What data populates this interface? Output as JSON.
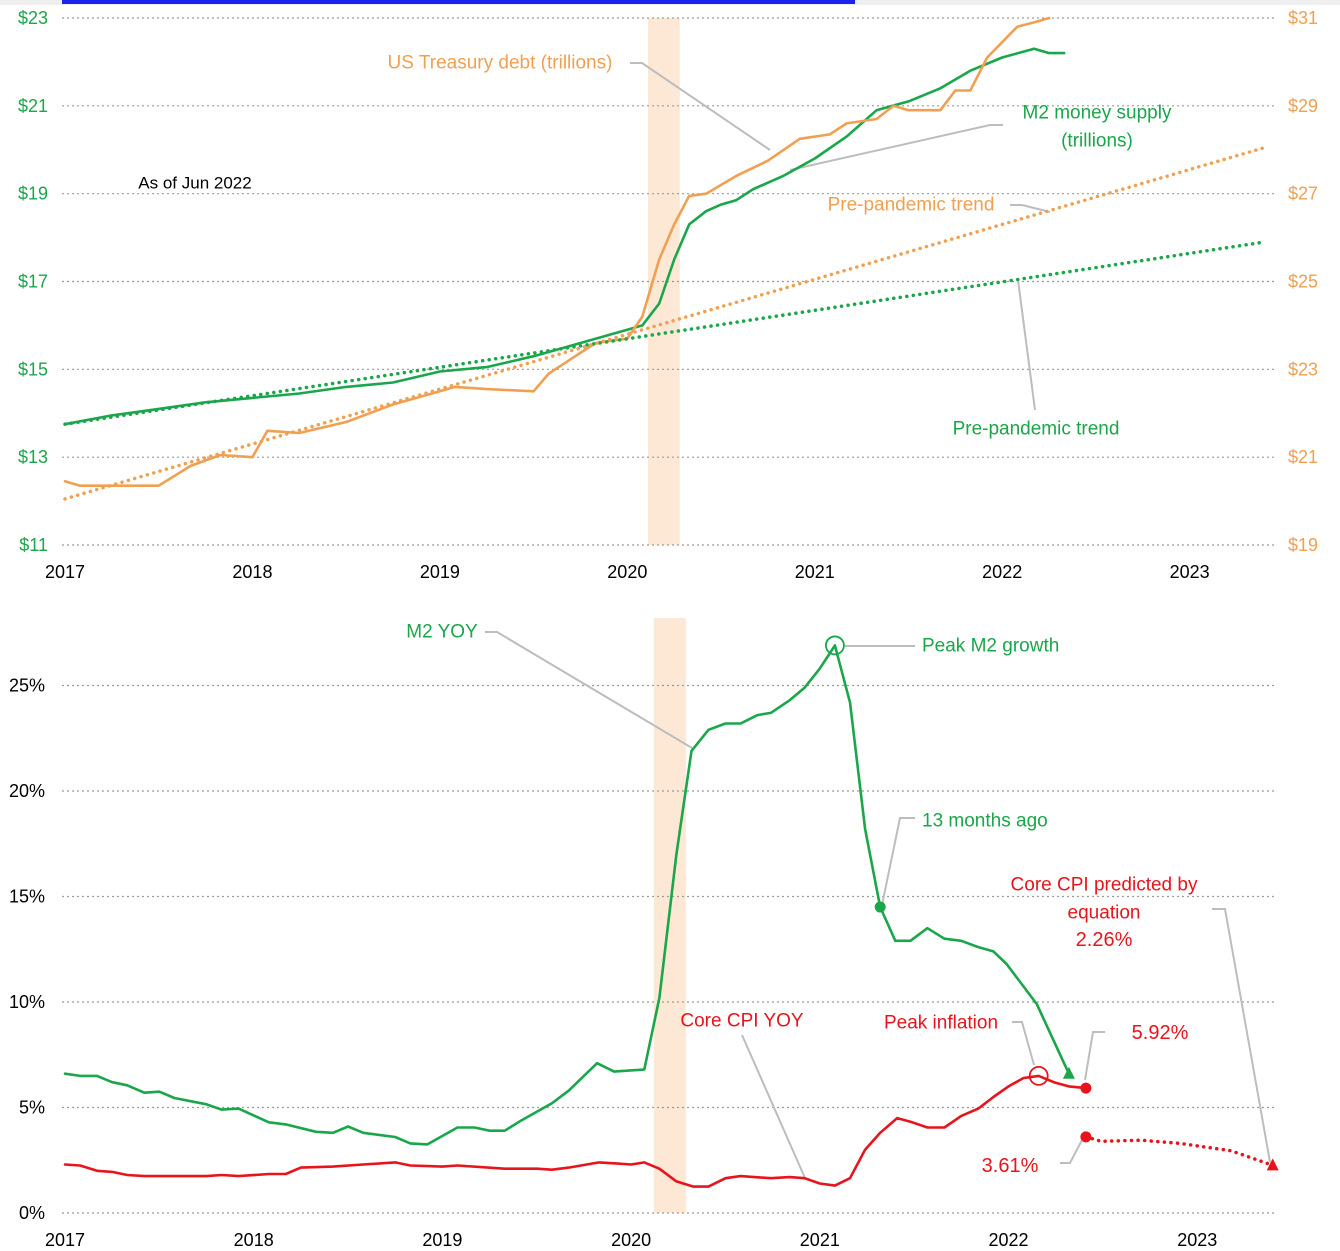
{
  "chart_data": [
    {
      "type": "line",
      "xlim": [
        2017,
        2023.45
      ],
      "xticks": [
        2017,
        2018,
        2019,
        2020,
        2021,
        2022,
        2023
      ],
      "ylim": [
        11,
        23
      ],
      "yticks": [
        {
          "value": 11,
          "label": "$11"
        },
        {
          "value": 13,
          "label": "$13"
        },
        {
          "value": 15,
          "label": "$15"
        },
        {
          "value": 17,
          "label": "$17"
        },
        {
          "value": 19,
          "label": "$19"
        },
        {
          "value": 21,
          "label": "$21"
        },
        {
          "value": 23,
          "label": "$23"
        }
      ],
      "y2lim": [
        19,
        31
      ],
      "y2ticks": [
        {
          "value": 19,
          "label": "$19"
        },
        {
          "value": 21,
          "label": "$21"
        },
        {
          "value": 23,
          "label": "$23"
        },
        {
          "value": 25,
          "label": "$25"
        },
        {
          "value": 27,
          "label": "$27"
        },
        {
          "value": 29,
          "label": "$29"
        },
        {
          "value": 31,
          "label": "$31"
        }
      ],
      "ytick_color": "#1aa64a",
      "y2tick_color": "#f0a050",
      "grid": true,
      "shade": [
        2020.11,
        2020.28
      ],
      "shade_color": "#fde8d6",
      "series": [
        {
          "color": "#1aa64a",
          "style": "solid",
          "x": [
            2017,
            2017.25,
            2017.5,
            2017.75,
            2018,
            2018.25,
            2018.5,
            2018.75,
            2019,
            2019.25,
            2019.5,
            2019.75,
            2020,
            2020.08,
            2020.17,
            2020.25,
            2020.33,
            2020.42,
            2020.5,
            2020.58,
            2020.67,
            2020.83,
            2021,
            2021.17,
            2021.33,
            2021.5,
            2021.67,
            2021.83,
            2022,
            2022.17,
            2022.25,
            2022.33
          ],
          "values": [
            13.75,
            13.95,
            14.1,
            14.25,
            14.35,
            14.45,
            14.6,
            14.7,
            14.95,
            15.05,
            15.3,
            15.6,
            15.9,
            16.0,
            16.5,
            17.5,
            18.3,
            18.6,
            18.75,
            18.85,
            19.1,
            19.4,
            19.8,
            20.3,
            20.9,
            21.1,
            21.4,
            21.8,
            22.1,
            22.3,
            22.2,
            22.2
          ]
        },
        {
          "color": "#f0a050",
          "style": "solid",
          "axis": "y2",
          "x": [
            2017,
            2017.08,
            2017.5,
            2017.67,
            2017.83,
            2018,
            2018.08,
            2018.25,
            2018.5,
            2018.75,
            2019,
            2019.08,
            2019.25,
            2019.5,
            2019.58,
            2019.83,
            2020,
            2020.08,
            2020.17,
            2020.25,
            2020.33,
            2020.42,
            2020.58,
            2020.75,
            2020.92,
            2021.08,
            2021.17,
            2021.33,
            2021.42,
            2021.5,
            2021.67,
            2021.75,
            2021.83,
            2021.92,
            2022.08,
            2022.17,
            2022.25
          ],
          "values": [
            20.45,
            20.35,
            20.35,
            20.8,
            21.05,
            21.0,
            21.6,
            21.55,
            21.8,
            22.2,
            22.5,
            22.6,
            22.55,
            22.5,
            22.9,
            23.6,
            23.7,
            24.2,
            25.5,
            26.3,
            26.95,
            27.0,
            27.4,
            27.75,
            28.25,
            28.35,
            28.6,
            28.7,
            29.0,
            28.9,
            28.9,
            29.35,
            29.35,
            30.1,
            30.8,
            30.9,
            31.0
          ]
        },
        {
          "color": "#1aa64a",
          "style": "dotted",
          "x": [
            2017,
            2023.4
          ],
          "values": [
            13.75,
            17.9
          ]
        },
        {
          "color": "#f0a050",
          "style": "dotted",
          "axis": "y2",
          "x": [
            2017,
            2023.4
          ],
          "values": [
            20.05,
            28.05
          ]
        }
      ],
      "annotations": [
        {
          "text": "US Treasury debt (trillions)",
          "color": "#f0a050"
        },
        {
          "text": "M2 money supply",
          "color": "#1aa64a"
        },
        {
          "text": "(trillions)",
          "color": "#1aa64a"
        },
        {
          "text": "Pre-pandemic trend",
          "color": "#f0a050"
        },
        {
          "text": "Pre-pandemic trend",
          "color": "#1aa64a"
        },
        {
          "text": "As of Jun 2022",
          "color": "#000000"
        }
      ]
    },
    {
      "type": "line",
      "xlim": [
        2017,
        2023.41
      ],
      "xticks": [
        2017,
        2018,
        2019,
        2020,
        2021,
        2022,
        2023
      ],
      "ylim": [
        0,
        28.2
      ],
      "yticks": [
        {
          "value": 0,
          "label": "0%"
        },
        {
          "value": 5,
          "label": "5%"
        },
        {
          "value": 10,
          "label": "10%"
        },
        {
          "value": 15,
          "label": "15%"
        },
        {
          "value": 20,
          "label": "20%"
        },
        {
          "value": 25,
          "label": "25%"
        }
      ],
      "ytick_color": "#000000",
      "grid": true,
      "shade": [
        2020.12,
        2020.29
      ],
      "shade_color": "#fde8d6",
      "series": [
        {
          "color": "#1aa64a",
          "style": "solid",
          "x": [
            2017,
            2017.08,
            2017.17,
            2017.25,
            2017.33,
            2017.42,
            2017.5,
            2017.58,
            2017.75,
            2017.83,
            2017.92,
            2018.08,
            2018.17,
            2018.33,
            2018.42,
            2018.5,
            2018.58,
            2018.75,
            2018.83,
            2018.92,
            2019.08,
            2019.17,
            2019.25,
            2019.33,
            2019.42,
            2019.58,
            2019.67,
            2019.75,
            2019.82,
            2019.91,
            2020.07,
            2020.15,
            2020.24,
            2020.32,
            2020.41,
            2020.5,
            2020.58,
            2020.67,
            2020.74,
            2020.84,
            2020.92,
            2021.0,
            2021.08,
            2021.16,
            2021.24,
            2021.32,
            2021.4,
            2021.48,
            2021.57,
            2021.66,
            2021.75,
            2021.84,
            2021.92,
            2021.99,
            2022.15,
            2022.32
          ],
          "values": [
            6.6,
            6.5,
            6.5,
            6.2,
            6.05,
            5.7,
            5.75,
            5.45,
            5.15,
            4.9,
            4.95,
            4.3,
            4.2,
            3.85,
            3.8,
            4.1,
            3.8,
            3.6,
            3.3,
            3.25,
            4.05,
            4.05,
            3.9,
            3.9,
            4.4,
            5.2,
            5.8,
            6.5,
            7.1,
            6.7,
            6.8,
            10.2,
            17.0,
            21.9,
            22.9,
            23.2,
            23.2,
            23.6,
            23.7,
            24.3,
            24.9,
            25.8,
            26.9,
            24.2,
            18.2,
            14.5,
            12.9,
            12.9,
            13.5,
            13.0,
            12.9,
            12.6,
            12.4,
            11.8,
            9.9,
            6.6
          ],
          "markers": [
            {
              "x": 2021.08,
              "shape": "open-circle"
            },
            {
              "x": 2021.32,
              "shape": "dot"
            },
            {
              "x": 2022.32,
              "shape": "triangle"
            }
          ]
        },
        {
          "color": "#e8141c",
          "style": "solid",
          "x": [
            2017,
            2017.08,
            2017.17,
            2017.25,
            2017.33,
            2017.42,
            2017.58,
            2017.75,
            2017.83,
            2017.92,
            2018.08,
            2018.17,
            2018.25,
            2018.42,
            2018.58,
            2018.75,
            2018.83,
            2019,
            2019.08,
            2019.33,
            2019.5,
            2019.58,
            2019.67,
            2019.83,
            2019.92,
            2020,
            2020.07,
            2020.15,
            2020.24,
            2020.33,
            2020.41,
            2020.5,
            2020.58,
            2020.74,
            2020.84,
            2020.92,
            2021.0,
            2021.08,
            2021.16,
            2021.24,
            2021.32,
            2021.41,
            2021.49,
            2021.57,
            2021.66,
            2021.75,
            2021.84,
            2021.92,
            2022.0,
            2022.08,
            2022.16,
            2022.24,
            2022.32,
            2022.41
          ],
          "values": [
            2.3,
            2.25,
            2.0,
            1.95,
            1.8,
            1.75,
            1.75,
            1.75,
            1.8,
            1.75,
            1.85,
            1.85,
            2.15,
            2.2,
            2.3,
            2.4,
            2.25,
            2.2,
            2.25,
            2.1,
            2.1,
            2.05,
            2.15,
            2.4,
            2.35,
            2.3,
            2.4,
            2.1,
            1.5,
            1.25,
            1.25,
            1.65,
            1.75,
            1.65,
            1.7,
            1.65,
            1.4,
            1.3,
            1.65,
            3.0,
            3.8,
            4.5,
            4.3,
            4.05,
            4.05,
            4.6,
            4.95,
            5.5,
            6.0,
            6.4,
            6.5,
            6.2,
            6.0,
            5.92
          ],
          "value_labels": [
            null,
            null,
            null,
            null,
            null,
            null,
            null,
            null,
            null,
            null,
            null,
            null,
            null,
            null,
            null,
            null,
            null,
            null,
            null,
            null,
            null,
            null,
            null,
            null,
            null,
            null,
            null,
            null,
            null,
            null,
            null,
            null,
            null,
            null,
            null,
            null,
            null,
            null,
            null,
            null,
            null,
            null,
            null,
            null,
            null,
            null,
            null,
            null,
            null,
            null,
            null,
            null,
            null,
            "5.92%"
          ],
          "markers": [
            {
              "x": 2022.16,
              "shape": "open-circle"
            },
            {
              "x": 2022.41,
              "shape": "dot"
            }
          ]
        },
        {
          "color": "#e8141c",
          "style": "dotted",
          "x": [
            2022.41,
            2022.49,
            2022.7,
            2022.91,
            2023.18,
            2023.4
          ],
          "values": [
            3.61,
            3.4,
            3.45,
            3.3,
            2.95,
            2.26
          ],
          "value_labels": [
            "3.61%",
            null,
            null,
            null,
            null,
            "2.26%"
          ],
          "markers": [
            {
              "x": 2022.41,
              "shape": "dot"
            },
            {
              "x": 2023.4,
              "shape": "triangle"
            }
          ]
        }
      ],
      "annotations": [
        {
          "text": "M2 YOY",
          "color": "#1aa64a"
        },
        {
          "text": "Peak M2 growth",
          "color": "#1aa64a"
        },
        {
          "text": "13 months ago",
          "color": "#1aa64a"
        },
        {
          "text": "Core CPI predicted by",
          "color": "#e8141c"
        },
        {
          "text": "equation",
          "color": "#e8141c"
        },
        {
          "text": "Core CPI YOY",
          "color": "#e8141c"
        },
        {
          "text": "Peak inflation",
          "color": "#e8141c"
        }
      ]
    }
  ]
}
